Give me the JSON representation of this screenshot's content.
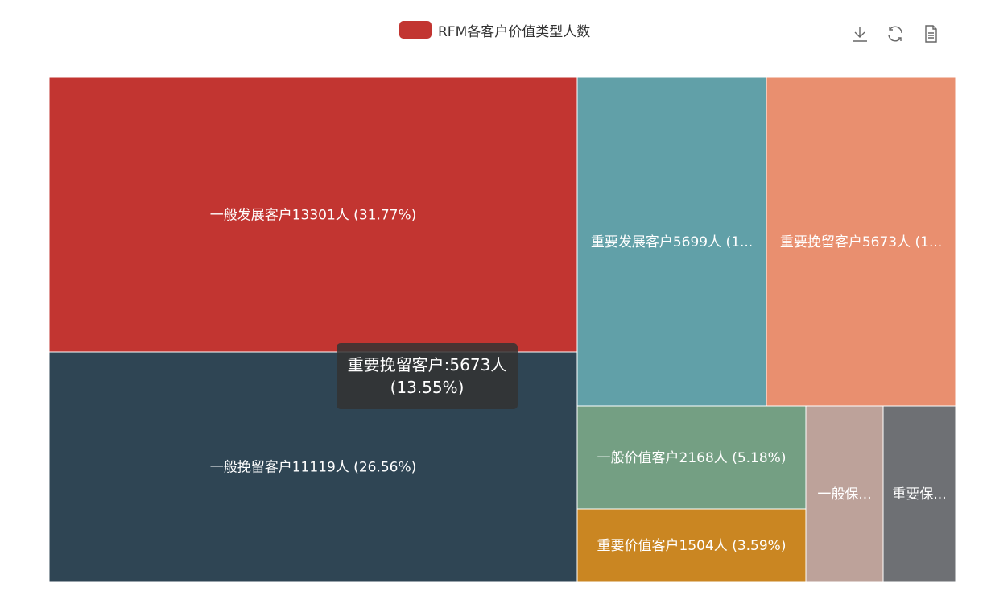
{
  "chart_data": {
    "type": "treemap",
    "legend": {
      "label": "RFM各客户价值类型人数",
      "color": "#c23531",
      "placement": "top-center"
    },
    "series": [
      {
        "name": "一般发展客户",
        "value": 13301,
        "percent": "31.77%",
        "label": "一般发展客户13301人 (31.77%)",
        "color": "#c23531"
      },
      {
        "name": "一般挽留客户",
        "value": 11119,
        "percent": "26.56%",
        "label": "一般挽留客户11119人 (26.56%)",
        "color": "#2f4554"
      },
      {
        "name": "重要发展客户",
        "value": 5699,
        "label": "重要发展客户5699人 (1...",
        "color": "#61a0a8"
      },
      {
        "name": "重要挽留客户",
        "value": 5673,
        "label": "重要挽留客户5673人 (1...",
        "color": "#e98f6f"
      },
      {
        "name": "一般价值客户",
        "value": 2168,
        "percent": "5.18%",
        "label": "一般价值客户2168人 (5.18%)",
        "color": "#749f83"
      },
      {
        "name": "重要价值客户",
        "value": 1504,
        "percent": "3.59%",
        "label": "重要价值客户1504人 (3.59%)",
        "color": "#ca8622"
      },
      {
        "name": "一般保持客户",
        "label": "一般保...",
        "color": "#bda29a"
      },
      {
        "name": "重要保持客户",
        "label": "重要保...",
        "color": "#6e7074"
      }
    ]
  },
  "tooltip": {
    "line1": "重要挽留客户:5673人",
    "line2": "(13.55%)"
  },
  "toolbox": {
    "icons": [
      "download-icon",
      "refresh-icon",
      "data-view-icon"
    ]
  }
}
